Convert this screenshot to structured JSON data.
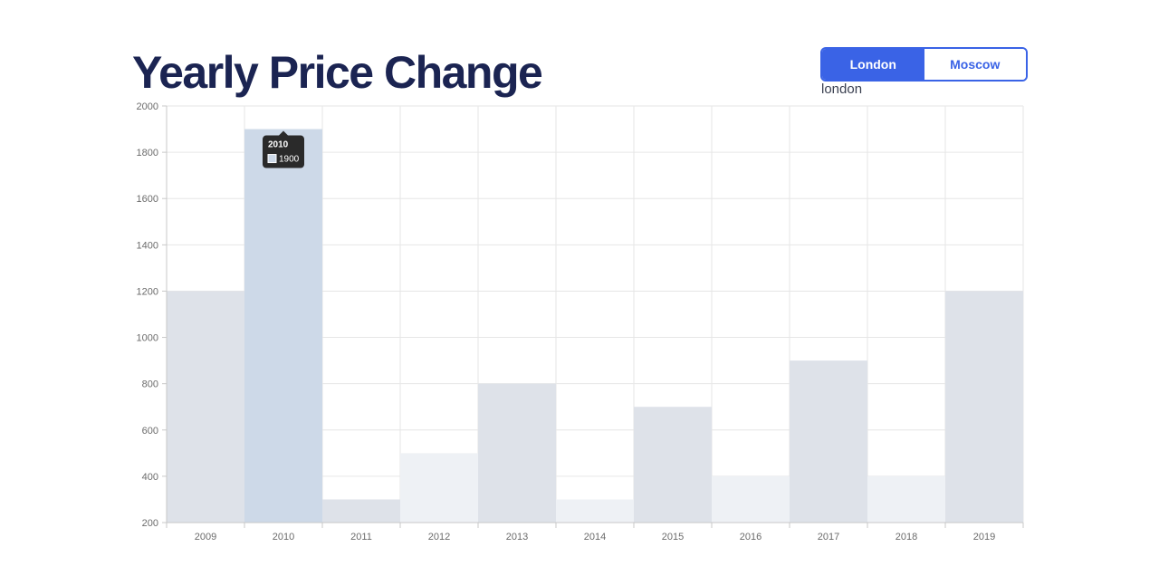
{
  "header": {
    "title": "Yearly Price Change"
  },
  "toggle": {
    "options": [
      {
        "label": "London",
        "active": true
      },
      {
        "label": "Moscow",
        "active": false
      }
    ],
    "selected_text": "london"
  },
  "colors": {
    "title": "#1b2452",
    "accent": "#3a63e6",
    "bar": "#dee2e9",
    "bar_light": "#eef1f5",
    "bar_highlight": "#cdd9e8",
    "tooltip_bg": "#2a2a2a",
    "grid": "#e6e6e6"
  },
  "chart_data": {
    "type": "bar",
    "categories": [
      "2009",
      "2010",
      "2011",
      "2012",
      "2013",
      "2014",
      "2015",
      "2016",
      "2017",
      "2018",
      "2019"
    ],
    "values": [
      1200,
      1900,
      300,
      500,
      800,
      300,
      700,
      400,
      900,
      400,
      1200
    ],
    "ylim": [
      200,
      2000
    ],
    "yticks": [
      "200",
      "400",
      "600",
      "800",
      "1000",
      "1200",
      "1400",
      "1600",
      "1800",
      "2000"
    ],
    "xlabel": "",
    "ylabel": "",
    "grid": true,
    "highlighted_category": "2010",
    "tooltip": {
      "title": "2010",
      "value": "1900"
    }
  }
}
